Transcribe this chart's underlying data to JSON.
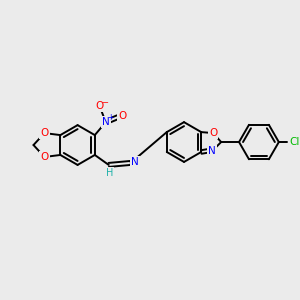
{
  "background_color": "#ebebeb",
  "bond_color": "#000000",
  "atom_colors": {
    "O": "#ff0000",
    "N": "#0000ff",
    "Cl": "#00bb00",
    "H": "#20b2aa",
    "C": "#000000"
  },
  "figsize": [
    3.0,
    3.0
  ],
  "dpi": 100
}
